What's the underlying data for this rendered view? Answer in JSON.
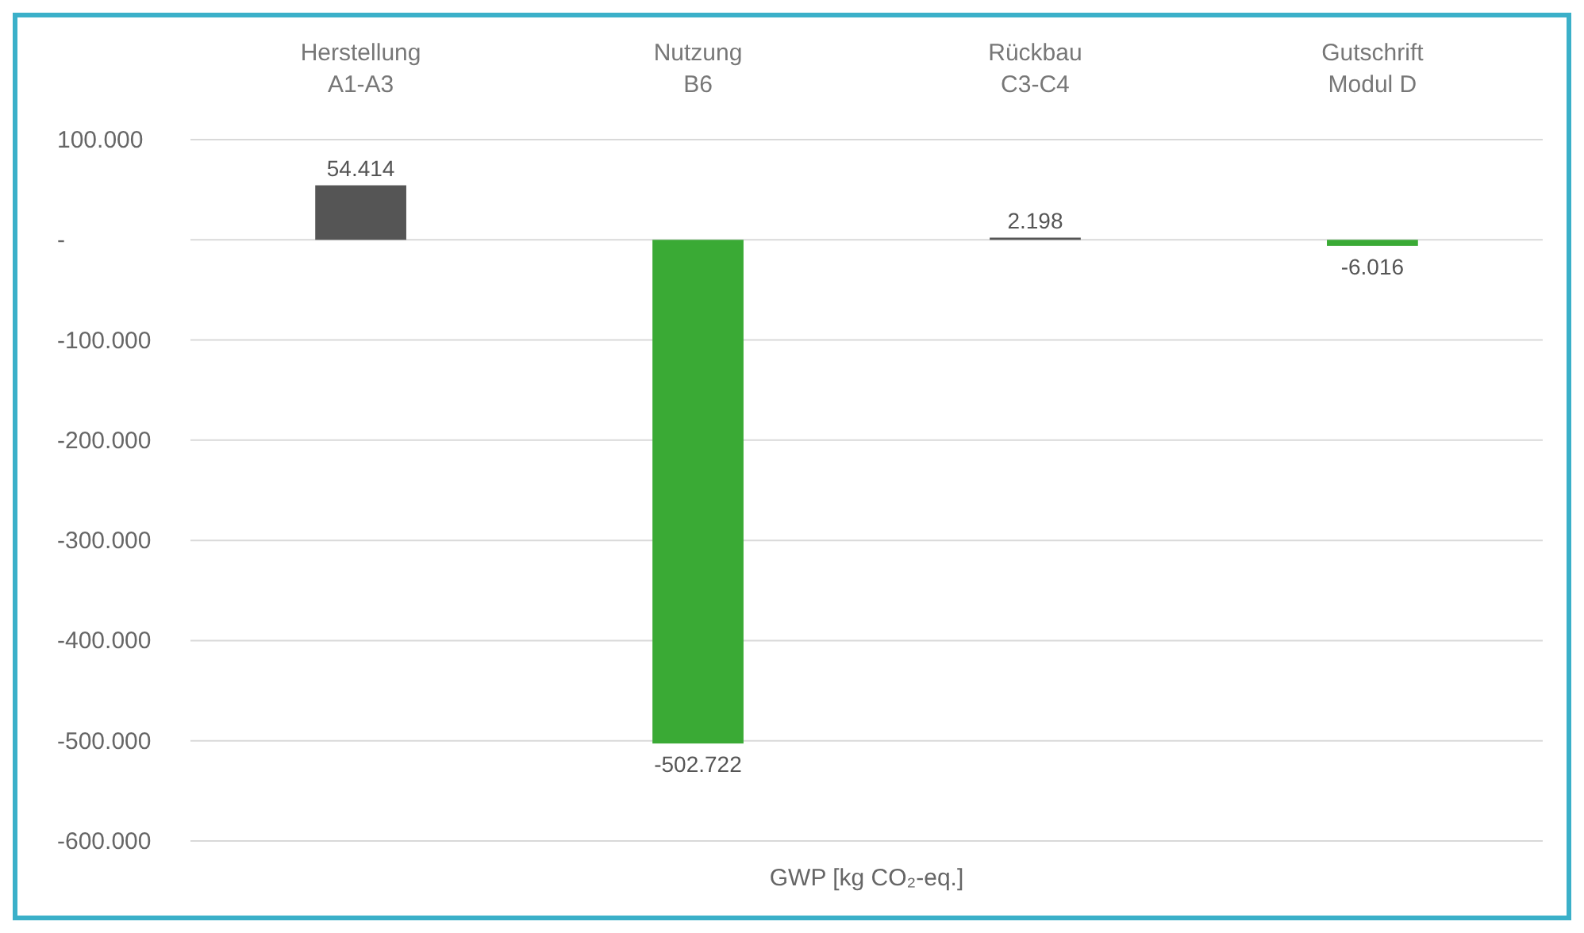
{
  "chart_data": {
    "type": "bar",
    "xlabel": "GWP  [kg CO₂-eq.]",
    "categories": [
      "Herstellung\nA1-A3",
      "Nutzung\nB6",
      "Rückbau\nC3-C4",
      "Gutschrift\nModul D"
    ],
    "values": [
      54414,
      -502722,
      2198,
      -6016
    ],
    "colors": [
      "#555555",
      "#3aaa35",
      "#555555",
      "#3aaa35"
    ],
    "value_labels": [
      "54.414",
      "-502.722",
      "2.198",
      "-6.016"
    ],
    "ylim": [
      -600000,
      100000
    ],
    "yticks": [
      {
        "value": 100000,
        "label": "100.000"
      },
      {
        "value": 0,
        "label": "-"
      },
      {
        "value": -100000,
        "label": "-100.000"
      },
      {
        "value": -200000,
        "label": "-200.000"
      },
      {
        "value": -300000,
        "label": "-300.000"
      },
      {
        "value": -400000,
        "label": "-400.000"
      },
      {
        "value": -500000,
        "label": "-500.000"
      },
      {
        "value": -600000,
        "label": "-600.000"
      }
    ],
    "grid": "y"
  }
}
